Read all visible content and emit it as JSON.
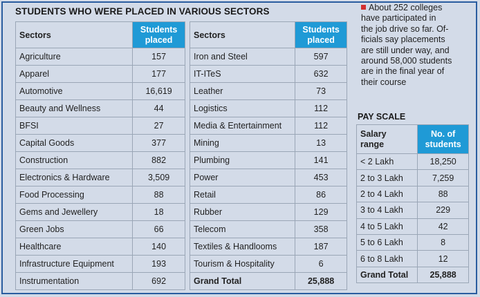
{
  "title": "STUDENTS WHO WERE PLACED IN VARIOUS SECTORS",
  "sectors_left": {
    "header_sector": "Sectors",
    "header_count": [
      "Students",
      "placed"
    ],
    "rows": [
      {
        "sector": "Agriculture",
        "count": "157"
      },
      {
        "sector": "Apparel",
        "count": "177"
      },
      {
        "sector": "Automotive",
        "count": "16,619"
      },
      {
        "sector": "Beauty and Wellness",
        "count": "44"
      },
      {
        "sector": "BFSI",
        "count": "27"
      },
      {
        "sector": "Capital Goods",
        "count": "377"
      },
      {
        "sector": "Construction",
        "count": "882"
      },
      {
        "sector": "Electronics & Hardware",
        "count": "3,509"
      },
      {
        "sector": "Food Processing",
        "count": "88"
      },
      {
        "sector": "Gems and Jewellery",
        "count": "18"
      },
      {
        "sector": "Green Jobs",
        "count": "66"
      },
      {
        "sector": "Healthcare",
        "count": "140"
      },
      {
        "sector": "Infrastructure Equipment",
        "count": "193"
      },
      {
        "sector": "Instrumentation",
        "count": "692"
      }
    ]
  },
  "sectors_right": {
    "header_sector": "Sectors",
    "header_count": [
      "Students",
      "placed"
    ],
    "rows": [
      {
        "sector": "Iron and Steel",
        "count": "597"
      },
      {
        "sector": "IT-ITeS",
        "count": "632"
      },
      {
        "sector": "Leather",
        "count": "73"
      },
      {
        "sector": "Logistics",
        "count": "112"
      },
      {
        "sector": "Media & Entertainment",
        "count": "112"
      },
      {
        "sector": "Mining",
        "count": "13"
      },
      {
        "sector": "Plumbing",
        "count": "141"
      },
      {
        "sector": "Power",
        "count": "453"
      },
      {
        "sector": "Retail",
        "count": "86"
      },
      {
        "sector": "Rubber",
        "count": "129"
      },
      {
        "sector": "Telecom",
        "count": "358"
      },
      {
        "sector": "Textiles & Handlooms",
        "count": "187"
      },
      {
        "sector": "Tourism & Hospitality",
        "count": "6"
      }
    ],
    "total_label": "Grand Total",
    "total_value": "25,888"
  },
  "note": {
    "lines": [
      "About 252 colleges",
      "have participated in",
      "the job drive so far. Of-",
      "ficials say placements",
      "are still under way, and",
      "around 58,000 students",
      "are in the final year of",
      "their course"
    ]
  },
  "pay_scale": {
    "title": "PAY SCALE",
    "header_range": [
      "Salary",
      "range"
    ],
    "header_count": [
      "No. of",
      "students"
    ],
    "rows": [
      {
        "range": "< 2 Lakh",
        "count": "18,250"
      },
      {
        "range": "2 to 3 Lakh",
        "count": "7,259"
      },
      {
        "range": "2 to 4 Lakh",
        "count": "88"
      },
      {
        "range": "3 to 4 Lakh",
        "count": "229"
      },
      {
        "range": "4 to 5 Lakh",
        "count": "42"
      },
      {
        "range": "5 to 6 Lakh",
        "count": "8"
      },
      {
        "range": "6 to 8 Lakh",
        "count": "12"
      }
    ],
    "total_label": "Grand Total",
    "total_value": "25,888"
  },
  "colors": {
    "header_blue": "#1f9ad6",
    "bullet_red": "#d32f2f",
    "frame_blue": "#2a5d9f",
    "background": "#d3dbe8"
  }
}
